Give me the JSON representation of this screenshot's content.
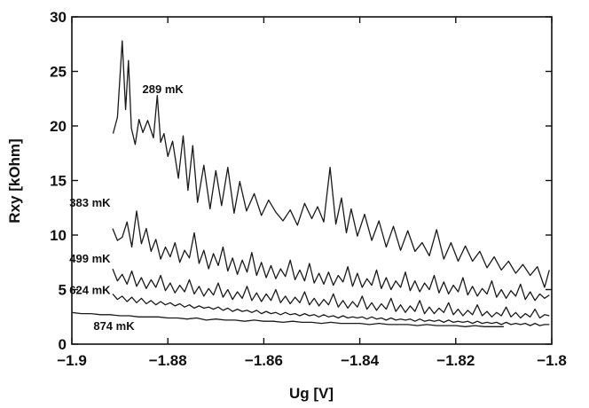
{
  "chart_data": {
    "type": "line",
    "title": "",
    "xlabel": "Ug [V]",
    "ylabel": "Rxy [kOhm]",
    "xlim": [
      -1.9,
      -1.8
    ],
    "ylim": [
      0,
      30
    ],
    "xticks": [
      -1.9,
      -1.88,
      -1.86,
      -1.84,
      -1.82,
      -1.8
    ],
    "xtick_labels": [
      "−1.9",
      "−1.88",
      "−1.86",
      "−1.84",
      "−1.82",
      "−1.8"
    ],
    "yticks": [
      0,
      5,
      10,
      15,
      20,
      25,
      30
    ],
    "ytick_labels": [
      "0",
      "5",
      "10",
      "15",
      "20",
      "25",
      "30"
    ],
    "grid": false,
    "legend": "inline labels",
    "series": [
      {
        "name": "289 mK",
        "x": [
          -1.8914,
          -1.8905,
          -1.8895,
          -1.8888,
          -1.8882,
          -1.8876,
          -1.8868,
          -1.886,
          -1.8852,
          -1.8842,
          -1.883,
          -1.8822,
          -1.8815,
          -1.8808,
          -1.88,
          -1.879,
          -1.8778,
          -1.8768,
          -1.8758,
          -1.8748,
          -1.8738,
          -1.8725,
          -1.8712,
          -1.87,
          -1.8688,
          -1.8675,
          -1.8662,
          -1.865,
          -1.8636,
          -1.862,
          -1.8605,
          -1.859,
          -1.8575,
          -1.856,
          -1.8545,
          -1.853,
          -1.8515,
          -1.85,
          -1.8488,
          -1.8475,
          -1.8462,
          -1.845,
          -1.8438,
          -1.8428,
          -1.8418,
          -1.8405,
          -1.839,
          -1.8375,
          -1.836,
          -1.8345,
          -1.833,
          -1.8315,
          -1.83,
          -1.8285,
          -1.827,
          -1.8255,
          -1.824,
          -1.8225,
          -1.821,
          -1.8195,
          -1.818,
          -1.8165,
          -1.815,
          -1.8135,
          -1.812,
          -1.8105,
          -1.809,
          -1.8075,
          -1.806,
          -1.8045,
          -1.803,
          -1.8015,
          -1.8005
        ],
        "y": [
          19.3,
          20.8,
          27.8,
          21.5,
          26.0,
          19.8,
          18.3,
          20.6,
          19.4,
          20.5,
          18.9,
          22.8,
          18.5,
          19.3,
          17.2,
          18.6,
          15.2,
          19.1,
          14.1,
          18.2,
          13.0,
          16.4,
          12.4,
          15.9,
          12.7,
          16.2,
          12.0,
          14.9,
          12.2,
          13.8,
          11.8,
          13.2,
          12.1,
          11.3,
          12.3,
          10.9,
          12.9,
          11.5,
          12.6,
          11.2,
          16.2,
          11.0,
          13.4,
          10.2,
          12.4,
          9.9,
          11.9,
          9.5,
          11.3,
          8.9,
          10.8,
          8.6,
          10.4,
          8.5,
          9.3,
          8.1,
          10.5,
          7.8,
          9.3,
          7.6,
          9.0,
          7.6,
          8.5,
          7.0,
          8.0,
          6.8,
          7.6,
          6.5,
          7.3,
          6.3,
          7.1,
          5.2,
          6.8
        ]
      },
      {
        "name": "383 mK",
        "x": [
          -1.8915,
          -1.8905,
          -1.8895,
          -1.8885,
          -1.8875,
          -1.8865,
          -1.8855,
          -1.8845,
          -1.8835,
          -1.8825,
          -1.8815,
          -1.8805,
          -1.8795,
          -1.8785,
          -1.8775,
          -1.8765,
          -1.8755,
          -1.8745,
          -1.8735,
          -1.8725,
          -1.8715,
          -1.8705,
          -1.8695,
          -1.8685,
          -1.8675,
          -1.8665,
          -1.8655,
          -1.8645,
          -1.8635,
          -1.8625,
          -1.8615,
          -1.8605,
          -1.8595,
          -1.8585,
          -1.8575,
          -1.8565,
          -1.8555,
          -1.8545,
          -1.8535,
          -1.8525,
          -1.8515,
          -1.8505,
          -1.8495,
          -1.8485,
          -1.8475,
          -1.8465,
          -1.8455,
          -1.8445,
          -1.8435,
          -1.8425,
          -1.8415,
          -1.8405,
          -1.8395,
          -1.8385,
          -1.8375,
          -1.8365,
          -1.8355,
          -1.8345,
          -1.8335,
          -1.8325,
          -1.8315,
          -1.8305,
          -1.8295,
          -1.8285,
          -1.8275,
          -1.8265,
          -1.8255,
          -1.8245,
          -1.8235,
          -1.8225,
          -1.8215,
          -1.8205,
          -1.8195,
          -1.8185,
          -1.8175,
          -1.8165,
          -1.8155,
          -1.8145,
          -1.8135,
          -1.8125,
          -1.8115,
          -1.8105,
          -1.8095,
          -1.8085,
          -1.8075,
          -1.8065,
          -1.8055,
          -1.8045,
          -1.8035,
          -1.8025,
          -1.8015,
          -1.8005
        ],
        "y": [
          10.6,
          9.5,
          9.8,
          11.2,
          8.9,
          12.2,
          9.2,
          10.6,
          8.5,
          9.6,
          7.8,
          8.9,
          8.0,
          9.3,
          7.5,
          8.6,
          7.9,
          10.2,
          7.4,
          8.6,
          6.9,
          8.3,
          7.2,
          8.9,
          6.7,
          7.9,
          6.4,
          7.7,
          6.6,
          8.4,
          6.3,
          7.5,
          6.1,
          7.2,
          6.0,
          6.9,
          6.2,
          7.7,
          5.9,
          6.8,
          5.8,
          7.4,
          5.6,
          6.5,
          5.5,
          6.6,
          5.4,
          6.3,
          5.7,
          7.1,
          5.3,
          6.5,
          5.2,
          6.0,
          5.4,
          6.8,
          5.1,
          6.1,
          5.0,
          5.8,
          5.2,
          6.6,
          4.9,
          5.8,
          4.8,
          5.6,
          5.0,
          6.3,
          4.7,
          5.7,
          4.6,
          5.4,
          4.8,
          6.1,
          4.5,
          5.3,
          4.4,
          5.1,
          4.6,
          5.8,
          4.3,
          5.0,
          4.2,
          4.9,
          4.4,
          5.5,
          4.1,
          4.8,
          4.0,
          4.6,
          4.2,
          4.5
        ]
      },
      {
        "name": "499 mK",
        "x": [
          -1.8915,
          -1.8905,
          -1.8895,
          -1.8885,
          -1.8875,
          -1.8865,
          -1.8855,
          -1.8845,
          -1.8835,
          -1.8825,
          -1.8815,
          -1.8805,
          -1.8795,
          -1.8785,
          -1.8775,
          -1.8765,
          -1.8755,
          -1.8745,
          -1.8735,
          -1.8725,
          -1.8715,
          -1.8705,
          -1.8695,
          -1.8685,
          -1.8675,
          -1.8665,
          -1.8655,
          -1.8645,
          -1.8635,
          -1.8625,
          -1.8615,
          -1.8605,
          -1.8595,
          -1.8585,
          -1.8575,
          -1.8565,
          -1.8555,
          -1.8545,
          -1.8535,
          -1.8525,
          -1.8515,
          -1.8505,
          -1.8495,
          -1.8485,
          -1.8475,
          -1.8465,
          -1.8455,
          -1.8445,
          -1.8435,
          -1.8425,
          -1.8415,
          -1.8405,
          -1.8395,
          -1.8385,
          -1.8375,
          -1.8365,
          -1.8355,
          -1.8345,
          -1.8335,
          -1.8325,
          -1.8315,
          -1.8305,
          -1.8295,
          -1.8285,
          -1.8275,
          -1.8265,
          -1.8255,
          -1.8245,
          -1.8235,
          -1.8225,
          -1.8215,
          -1.8205,
          -1.8195,
          -1.8185,
          -1.8175,
          -1.8165,
          -1.8155,
          -1.8145,
          -1.8135,
          -1.8125,
          -1.8115,
          -1.8105,
          -1.8095,
          -1.8085,
          -1.8075,
          -1.8065,
          -1.8055,
          -1.8045,
          -1.8035,
          -1.8025,
          -1.8015,
          -1.8005
        ],
        "y": [
          6.9,
          5.8,
          6.4,
          5.5,
          6.7,
          5.3,
          6.1,
          5.1,
          5.9,
          5.2,
          6.3,
          4.9,
          5.6,
          4.7,
          5.4,
          4.8,
          5.9,
          4.6,
          5.3,
          4.4,
          5.1,
          4.5,
          5.6,
          4.3,
          5.0,
          4.1,
          4.8,
          4.2,
          5.3,
          4.0,
          4.7,
          3.9,
          4.6,
          4.0,
          5.0,
          3.8,
          4.4,
          3.7,
          4.3,
          3.8,
          4.8,
          3.6,
          4.2,
          3.5,
          4.1,
          3.6,
          4.6,
          3.4,
          4.0,
          3.3,
          3.9,
          3.4,
          4.4,
          3.2,
          3.8,
          3.1,
          3.7,
          3.2,
          4.2,
          3.0,
          3.6,
          2.9,
          3.5,
          3.0,
          4.0,
          2.8,
          3.4,
          2.8,
          3.3,
          2.9,
          3.8,
          2.7,
          3.2,
          2.6,
          3.1,
          2.7,
          3.6,
          2.6,
          3.0,
          2.5,
          2.9,
          2.6,
          3.4,
          2.5,
          2.9,
          2.4,
          2.8,
          2.5,
          3.2,
          2.4,
          2.7,
          2.6
        ]
      },
      {
        "name": "624 mK",
        "x": [
          -1.8915,
          -1.8905,
          -1.8895,
          -1.8885,
          -1.8875,
          -1.8865,
          -1.8855,
          -1.8845,
          -1.8835,
          -1.8825,
          -1.8815,
          -1.8805,
          -1.8795,
          -1.8785,
          -1.8775,
          -1.8765,
          -1.8755,
          -1.8745,
          -1.8735,
          -1.8725,
          -1.8715,
          -1.8705,
          -1.8695,
          -1.8685,
          -1.8675,
          -1.8665,
          -1.8655,
          -1.8645,
          -1.8635,
          -1.8625,
          -1.8615,
          -1.8605,
          -1.8595,
          -1.8585,
          -1.8575,
          -1.8565,
          -1.8555,
          -1.8545,
          -1.8535,
          -1.8525,
          -1.8515,
          -1.8505,
          -1.8495,
          -1.8485,
          -1.8475,
          -1.8465,
          -1.8455,
          -1.8445,
          -1.8435,
          -1.8425,
          -1.8415,
          -1.8405,
          -1.8395,
          -1.8385,
          -1.8375,
          -1.8365,
          -1.8355,
          -1.8345,
          -1.8335,
          -1.8325,
          -1.8315,
          -1.8305,
          -1.8295,
          -1.8285,
          -1.8275,
          -1.8265,
          -1.8255,
          -1.8245,
          -1.8235,
          -1.8225,
          -1.8215,
          -1.8205,
          -1.8195,
          -1.8185,
          -1.8175,
          -1.8165,
          -1.8155,
          -1.8145,
          -1.8135,
          -1.8125,
          -1.8115,
          -1.8105,
          -1.8095,
          -1.8085,
          -1.8075,
          -1.8065,
          -1.8055,
          -1.8045,
          -1.8035,
          -1.8025,
          -1.8015,
          -1.8005
        ],
        "y": [
          4.6,
          4.1,
          4.4,
          3.9,
          4.3,
          3.8,
          4.2,
          3.7,
          4.0,
          3.6,
          3.9,
          3.6,
          3.8,
          3.5,
          3.7,
          3.4,
          3.6,
          3.3,
          3.5,
          3.3,
          3.4,
          3.2,
          3.4,
          3.1,
          3.3,
          3.0,
          3.2,
          3.0,
          3.1,
          2.9,
          3.1,
          2.8,
          3.0,
          2.8,
          2.9,
          2.7,
          2.9,
          2.7,
          2.8,
          2.6,
          2.8,
          2.6,
          2.7,
          2.5,
          2.7,
          2.5,
          2.6,
          2.4,
          2.6,
          2.4,
          2.5,
          2.4,
          2.5,
          2.3,
          2.5,
          2.3,
          2.4,
          2.2,
          2.4,
          2.2,
          2.3,
          2.2,
          2.3,
          2.1,
          2.3,
          2.1,
          2.2,
          2.1,
          2.2,
          2.0,
          2.2,
          2.0,
          2.1,
          2.0,
          2.1,
          1.9,
          2.1,
          1.9,
          2.0,
          1.9,
          2.0,
          1.8,
          2.0,
          1.8,
          1.9,
          1.8,
          1.9,
          1.7,
          1.9,
          1.7,
          1.8,
          1.8
        ]
      },
      {
        "name": "874 mK",
        "x": [
          -1.9,
          -1.898,
          -1.896,
          -1.894,
          -1.892,
          -1.89,
          -1.888,
          -1.886,
          -1.884,
          -1.882,
          -1.88,
          -1.878,
          -1.876,
          -1.874,
          -1.872,
          -1.87,
          -1.868,
          -1.866,
          -1.864,
          -1.862,
          -1.86,
          -1.858,
          -1.856,
          -1.854,
          -1.852,
          -1.85,
          -1.848,
          -1.846,
          -1.844,
          -1.842,
          -1.84,
          -1.838,
          -1.836,
          -1.834,
          -1.832,
          -1.83,
          -1.828,
          -1.826,
          -1.824,
          -1.822,
          -1.82,
          -1.818,
          -1.816,
          -1.814,
          -1.812,
          -1.81
        ],
        "y": [
          2.9,
          2.8,
          2.8,
          2.7,
          2.7,
          2.6,
          2.6,
          2.5,
          2.5,
          2.5,
          2.4,
          2.4,
          2.3,
          2.4,
          2.2,
          2.3,
          2.2,
          2.2,
          2.1,
          2.2,
          2.1,
          2.1,
          2.0,
          2.1,
          2.0,
          2.0,
          1.9,
          2.0,
          1.9,
          1.9,
          1.9,
          1.8,
          1.9,
          1.8,
          1.8,
          1.8,
          1.7,
          1.8,
          1.7,
          1.7,
          1.7,
          1.6,
          1.7,
          1.6,
          1.6,
          1.6
        ]
      }
    ],
    "annotations": [
      {
        "text": "289 mK",
        "series": 0
      },
      {
        "text": "383 mK",
        "series": 1
      },
      {
        "text": "499 mK",
        "series": 2
      },
      {
        "text": "624 mK",
        "series": 3
      },
      {
        "text": "874 mK",
        "series": 4
      }
    ]
  }
}
